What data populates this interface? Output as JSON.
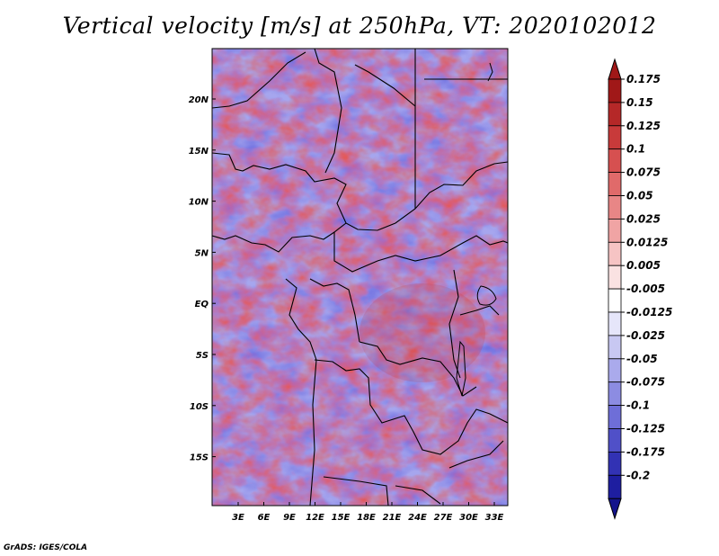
{
  "title": "Vertical velocity [m/s] at 250hPa, VT: 2020102012",
  "credit": "GrADS: IGES/COLA",
  "map": {
    "lat_labels": [
      "20N",
      "15N",
      "10N",
      "5N",
      "EQ",
      "5S",
      "10S",
      "15S"
    ],
    "lon_labels": [
      "3E",
      "6E",
      "9E",
      "12E",
      "15E",
      "18E",
      "21E",
      "24E",
      "27E",
      "30E",
      "33E"
    ]
  },
  "colorbar": {
    "levels": [
      "0.175",
      "0.15",
      "0.125",
      "0.1",
      "0.075",
      "0.05",
      "0.025",
      "0.0125",
      "0.005",
      "-0.005",
      "-0.0125",
      "-0.025",
      "-0.05",
      "-0.075",
      "-0.1",
      "-0.125",
      "-0.175",
      "-0.2"
    ],
    "colors": [
      "#a01818",
      "#b52828",
      "#c83a3a",
      "#d65050",
      "#e06a6a",
      "#e88686",
      "#f0a4a4",
      "#f6c4c4",
      "#fae2e2",
      "#ffffff",
      "#e6e6fa",
      "#c8c8f2",
      "#aaaaec",
      "#8c8ce2",
      "#6e6ed8",
      "#5050c8",
      "#3232b4",
      "#1e1ea0",
      "#14148c"
    ]
  }
}
